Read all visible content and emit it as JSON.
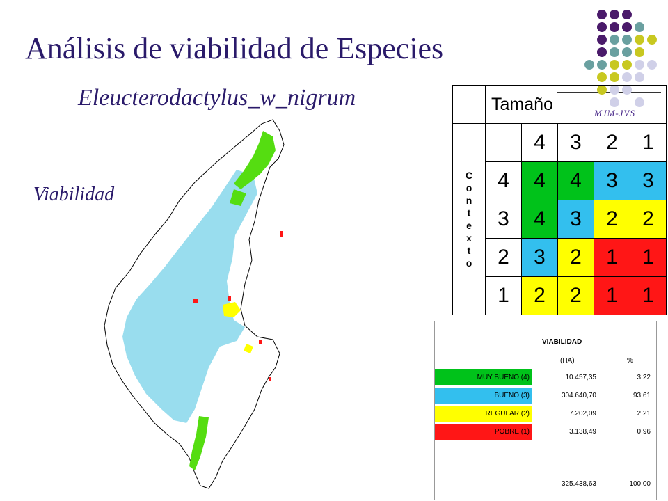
{
  "title": "Análisis de viabilidad de Especies",
  "subtitle": "Eleucterodactylus_w_nigrum",
  "map_label": "Viabilidad",
  "logo_text": "MJM-JVS",
  "colors": {
    "title": "#2a1a6a",
    "muy_bueno": "#00c21a",
    "bueno": "#33bfee",
    "regular": "#ffff00",
    "pobre": "#ff1616",
    "map_green": "#55dd11",
    "map_cyan": "#99ddee"
  },
  "matrix": {
    "header": "Tamaño",
    "side_label": [
      "C",
      "o",
      "n",
      "t",
      "e",
      "x",
      "t",
      "o"
    ],
    "columns": [
      "4",
      "3",
      "2",
      "1"
    ],
    "rows": [
      {
        "label": "4",
        "cells": [
          "4",
          "4",
          "3",
          "3"
        ]
      },
      {
        "label": "3",
        "cells": [
          "4",
          "3",
          "2",
          "2"
        ]
      },
      {
        "label": "2",
        "cells": [
          "3",
          "2",
          "1",
          "1"
        ]
      },
      {
        "label": "1",
        "cells": [
          "2",
          "2",
          "1",
          "1"
        ]
      }
    ]
  },
  "viabilidad_table": {
    "title": "VIABILIDAD",
    "col_ha": "(HA)",
    "col_pct": "%",
    "rows": [
      {
        "label": "MUY BUENO (4)",
        "ha": "10.457,35",
        "pct": "3,22"
      },
      {
        "label": "BUENO (3)",
        "ha": "304.640,70",
        "pct": "93,61"
      },
      {
        "label": "REGULAR (2)",
        "ha": "7.202,09",
        "pct": "2,21"
      },
      {
        "label": "POBRE (1)",
        "ha": "3.138,49",
        "pct": "0,96"
      }
    ],
    "total_ha": "325.438,63",
    "total_pct": "100,00"
  }
}
